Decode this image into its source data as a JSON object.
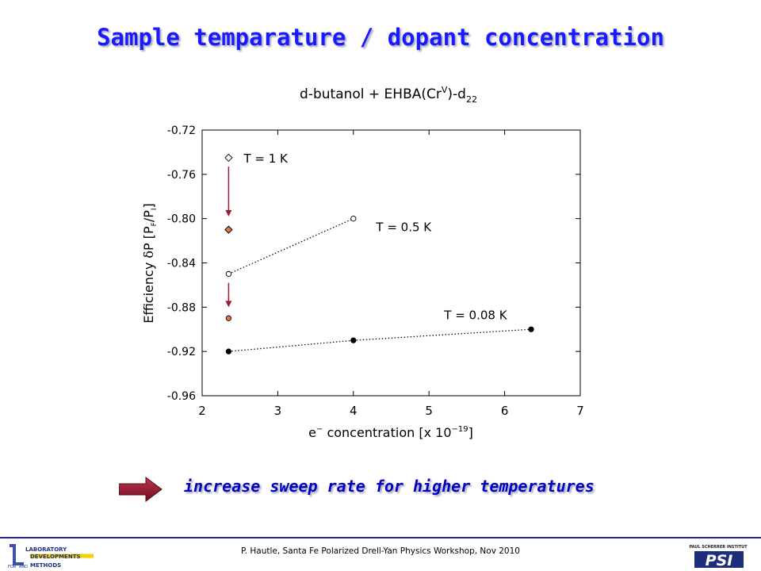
{
  "slide": {
    "title": "Sample temparature / dopant concentration",
    "conclusion": "increase sweep rate for higher temperatures",
    "footer": "P. Hautle, Santa Fe Polarized Drell-Yan Physics Workshop, Nov 2010",
    "lab_logo_text": [
      "LABORATORY",
      "DEVELOPMENTS",
      "FOR",
      "AND",
      "METHODS"
    ],
    "psi_logo_text": [
      "PAUL SCHERRER INSTITUT",
      "PSI"
    ]
  },
  "colors": {
    "title": "#1a1aff",
    "conclusion": "#0000c0",
    "arrow": "#9b1b30",
    "shifted_marker": "#e8704a"
  },
  "chart_data": {
    "type": "scatter",
    "title": "d-butanol + EHBA(Cr",
    "title_sup": "V",
    "title_tail": ")-d",
    "title_sub": "22",
    "xlabel_parts": [
      "e",
      "−",
      " concentration [x 10",
      "−19",
      "]"
    ],
    "ylabel_parts": [
      "Efficiency ",
      "δ",
      "P [P",
      "F",
      "/P",
      "I",
      "]"
    ],
    "xlim": [
      2,
      7
    ],
    "ylim": [
      -0.96,
      -0.72
    ],
    "x_ticks": [
      2,
      3,
      4,
      5,
      6,
      7
    ],
    "y_ticks": [
      -0.72,
      -0.76,
      -0.8,
      -0.84,
      -0.88,
      -0.92,
      -0.96
    ],
    "y_tick_labels": [
      "-0.72",
      "-0.76",
      "-0.80",
      "-0.84",
      "-0.88",
      "-0.92",
      "-0.96"
    ],
    "grid": false,
    "series": [
      {
        "name": "T = 1 K",
        "marker": "diamond-open",
        "x": [
          2.35
        ],
        "y": [
          -0.745
        ],
        "line": false
      },
      {
        "name": "T = 0.5 K",
        "marker": "circle-open",
        "x": [
          2.35,
          4.0
        ],
        "y": [
          -0.85,
          -0.8
        ],
        "line": true
      },
      {
        "name": "T = 0.08 K",
        "marker": "circle-filled",
        "x": [
          2.35,
          4.0,
          6.35
        ],
        "y": [
          -0.92,
          -0.91,
          -0.9
        ],
        "line": true
      }
    ],
    "shifted_points": [
      {
        "marker": "diamond-orange",
        "x": 2.35,
        "y": -0.81
      },
      {
        "marker": "circle-orange",
        "x": 2.35,
        "y": -0.89
      }
    ],
    "arrows": [
      {
        "x": 2.35,
        "from_y": -0.753,
        "to_y": -0.798
      },
      {
        "x": 2.35,
        "from_y": -0.858,
        "to_y": -0.88
      }
    ],
    "annotations": [
      {
        "text": "T = 1 K",
        "x": 2.55,
        "y": -0.745
      },
      {
        "text": "T = 0.5 K",
        "x": 4.3,
        "y": -0.807
      },
      {
        "text": "T = 0.08 K",
        "x": 5.2,
        "y": -0.8865
      }
    ]
  }
}
